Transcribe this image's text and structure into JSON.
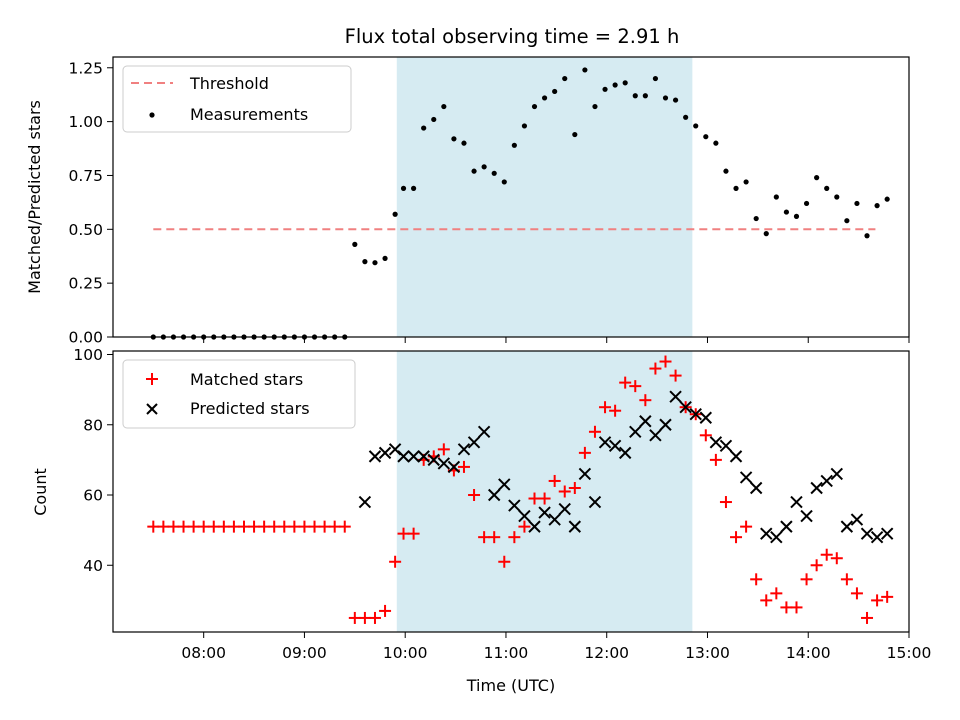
{
  "chart_data": [
    {
      "type": "scatter",
      "title": "Flux total observing time = 2.91 h",
      "xlabel": "",
      "ylabel": "Matched/Predicted stars",
      "ylim": [
        0,
        1.3
      ],
      "yticks": [
        "0.00",
        "0.25",
        "0.50",
        "0.75",
        "1.00",
        "1.25"
      ],
      "shaded_interval": [
        "09:55",
        "12:51"
      ],
      "shade_color": "#add8e6",
      "legend_position": "top-left",
      "threshold": {
        "name": "Threshold",
        "value": 0.5,
        "x_range": [
          "07:30",
          "14:40"
        ],
        "color": "#f08080"
      },
      "series": [
        {
          "name": "Measurements",
          "color": "#000000",
          "x": [
            "07:30",
            "07:36",
            "07:42",
            "07:48",
            "07:54",
            "08:00",
            "08:06",
            "08:12",
            "08:18",
            "08:24",
            "08:30",
            "08:36",
            "08:42",
            "08:48",
            "08:54",
            "09:00",
            "09:06",
            "09:12",
            "09:18",
            "09:24",
            "09:30",
            "09:36",
            "09:42",
            "09:48",
            "09:54",
            "09:59",
            "10:05",
            "10:11",
            "10:17",
            "10:23",
            "10:29",
            "10:35",
            "10:41",
            "10:47",
            "10:53",
            "10:59",
            "11:05",
            "11:11",
            "11:17",
            "11:23",
            "11:29",
            "11:35",
            "11:41",
            "11:47",
            "11:53",
            "11:59",
            "12:05",
            "12:11",
            "12:17",
            "12:23",
            "12:29",
            "12:35",
            "12:41",
            "12:47",
            "12:53",
            "12:59",
            "13:05",
            "13:11",
            "13:17",
            "13:23",
            "13:29",
            "13:35",
            "13:41",
            "13:47",
            "13:53",
            "13:59",
            "14:05",
            "14:11",
            "14:17",
            "14:23",
            "14:29",
            "14:35",
            "14:41",
            "14:47"
          ],
          "y": [
            0,
            0,
            0,
            0,
            0,
            0,
            0,
            0,
            0,
            0,
            0,
            0,
            0,
            0,
            0,
            0,
            0,
            0,
            0,
            0,
            0.43,
            0.35,
            0.345,
            0.365,
            0.57,
            0.69,
            0.69,
            0.97,
            1.01,
            1.07,
            0.92,
            0.9,
            0.77,
            0.79,
            0.76,
            0.72,
            0.89,
            0.98,
            1.07,
            1.11,
            1.14,
            1.2,
            0.94,
            1.24,
            1.07,
            1.15,
            1.17,
            1.18,
            1.12,
            1.12,
            1.2,
            1.11,
            1.1,
            1.02,
            0.98,
            0.93,
            0.9,
            0.77,
            0.69,
            0.72,
            0.55,
            0.48,
            0.65,
            0.58,
            0.56,
            0.62,
            0.74,
            0.69,
            0.65,
            0.54,
            0.62,
            0.47,
            0.61,
            0.64
          ]
        }
      ]
    },
    {
      "type": "scatter",
      "xlabel": "Time (UTC)",
      "ylabel": "Count",
      "xlim": [
        "07:06",
        "15:00"
      ],
      "xticks": [
        "08:00",
        "09:00",
        "10:00",
        "11:00",
        "12:00",
        "13:00",
        "14:00",
        "15:00"
      ],
      "ylim": [
        21,
        101
      ],
      "yticks": [
        "40",
        "60",
        "80",
        "100"
      ],
      "shaded_interval": [
        "09:55",
        "12:51"
      ],
      "shade_color": "#add8e6",
      "legend_position": "top-left",
      "series": [
        {
          "name": "Matched stars",
          "marker": "plus",
          "color": "#ff0000",
          "x": [
            "07:30",
            "07:36",
            "07:42",
            "07:48",
            "07:54",
            "08:00",
            "08:06",
            "08:12",
            "08:18",
            "08:24",
            "08:30",
            "08:36",
            "08:42",
            "08:48",
            "08:54",
            "09:00",
            "09:06",
            "09:12",
            "09:18",
            "09:24",
            "09:30",
            "09:36",
            "09:42",
            "09:48",
            "09:54",
            "09:59",
            "10:05",
            "10:11",
            "10:17",
            "10:23",
            "10:29",
            "10:35",
            "10:41",
            "10:47",
            "10:53",
            "10:59",
            "11:05",
            "11:11",
            "11:17",
            "11:23",
            "11:29",
            "11:35",
            "11:41",
            "11:47",
            "11:53",
            "11:59",
            "12:05",
            "12:11",
            "12:17",
            "12:23",
            "12:29",
            "12:35",
            "12:41",
            "12:47",
            "12:53",
            "12:59",
            "13:05",
            "13:11",
            "13:17",
            "13:23",
            "13:29",
            "13:35",
            "13:41",
            "13:47",
            "13:53",
            "13:59",
            "14:05",
            "14:11",
            "14:17",
            "14:23",
            "14:29",
            "14:35",
            "14:41",
            "14:47"
          ],
          "y": [
            51,
            51,
            51,
            51,
            51,
            51,
            51,
            51,
            51,
            51,
            51,
            51,
            51,
            51,
            51,
            51,
            51,
            51,
            51,
            51,
            25,
            25,
            25,
            27,
            41,
            49,
            49,
            70,
            71,
            73,
            67,
            68,
            60,
            48,
            48,
            41,
            48,
            51,
            59,
            59,
            64,
            61,
            62,
            72,
            78,
            85,
            84,
            92,
            91,
            87,
            96,
            98,
            94,
            85,
            83,
            77,
            70,
            58,
            48,
            51,
            36,
            30,
            32,
            28,
            28,
            36,
            40,
            43,
            42,
            36,
            32,
            25,
            30,
            31
          ]
        },
        {
          "name": "Predicted stars",
          "marker": "x",
          "color": "#000000",
          "x": [
            "09:36",
            "09:42",
            "09:48",
            "09:54",
            "09:59",
            "10:05",
            "10:11",
            "10:17",
            "10:23",
            "10:29",
            "10:35",
            "10:41",
            "10:47",
            "10:53",
            "10:59",
            "11:05",
            "11:11",
            "11:17",
            "11:23",
            "11:29",
            "11:35",
            "11:41",
            "11:47",
            "11:53",
            "11:59",
            "12:05",
            "12:11",
            "12:17",
            "12:23",
            "12:29",
            "12:35",
            "12:41",
            "12:47",
            "12:53",
            "12:59",
            "13:05",
            "13:11",
            "13:17",
            "13:23",
            "13:29",
            "13:35",
            "13:41",
            "13:47",
            "13:53",
            "13:59",
            "14:05",
            "14:11",
            "14:17",
            "14:23",
            "14:29",
            "14:35",
            "14:41",
            "14:47"
          ],
          "y": [
            58,
            71,
            72,
            73,
            71,
            71,
            71,
            70,
            69,
            68,
            73,
            75,
            78,
            60,
            63,
            57,
            54,
            51,
            55,
            53,
            56,
            51,
            66,
            58,
            75,
            74,
            72,
            78,
            81,
            77,
            80,
            88,
            85,
            83,
            82,
            75,
            74,
            71,
            65,
            62,
            49,
            48,
            51,
            58,
            54,
            62,
            64,
            66,
            51,
            53,
            49,
            48,
            49
          ]
        }
      ]
    }
  ]
}
